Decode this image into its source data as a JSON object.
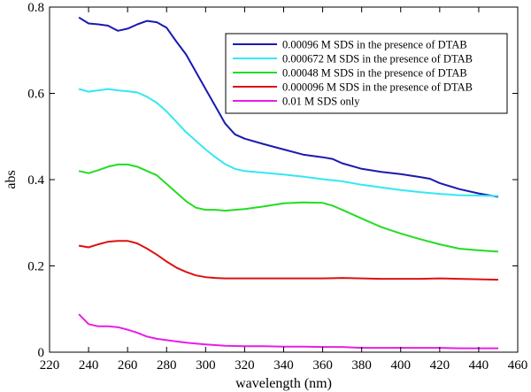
{
  "chart_data": {
    "type": "line",
    "title": "",
    "xlabel": "wavelength (nm)",
    "ylabel": "abs",
    "xlim": [
      220,
      460
    ],
    "ylim": [
      0,
      0.8
    ],
    "xticks": [
      220,
      240,
      260,
      280,
      300,
      320,
      340,
      360,
      380,
      400,
      420,
      440,
      460
    ],
    "yticks": [
      0,
      0.2,
      0.4,
      0.6,
      0.8
    ],
    "ytick_labels": [
      "0",
      "0.2",
      "0.4",
      "0.6",
      "0.8"
    ],
    "grid": false,
    "legend_position": "top-right",
    "series": [
      {
        "name": "0.00096 M SDS in the presence of DTAB",
        "color": "#1a1aaf",
        "x": [
          235,
          240,
          245,
          250,
          255,
          260,
          265,
          270,
          275,
          280,
          285,
          290,
          295,
          300,
          305,
          310,
          315,
          320,
          330,
          340,
          350,
          360,
          365,
          370,
          380,
          390,
          400,
          410,
          415,
          420,
          430,
          440,
          450
        ],
        "y": [
          0.776,
          0.762,
          0.76,
          0.757,
          0.745,
          0.75,
          0.76,
          0.768,
          0.765,
          0.752,
          0.72,
          0.69,
          0.65,
          0.61,
          0.57,
          0.53,
          0.505,
          0.495,
          0.482,
          0.47,
          0.458,
          0.452,
          0.448,
          0.438,
          0.425,
          0.418,
          0.413,
          0.406,
          0.402,
          0.392,
          0.378,
          0.368,
          0.36
        ]
      },
      {
        "name": "0.000672 M SDS in the presence of DTAB",
        "color": "#33e8f2",
        "x": [
          235,
          240,
          245,
          250,
          255,
          260,
          265,
          270,
          275,
          280,
          285,
          290,
          295,
          300,
          305,
          310,
          315,
          320,
          330,
          340,
          350,
          360,
          370,
          380,
          390,
          400,
          410,
          420,
          430,
          440,
          450
        ],
        "y": [
          0.61,
          0.604,
          0.607,
          0.61,
          0.607,
          0.605,
          0.602,
          0.592,
          0.578,
          0.558,
          0.534,
          0.51,
          0.49,
          0.47,
          0.452,
          0.436,
          0.425,
          0.42,
          0.416,
          0.412,
          0.407,
          0.401,
          0.396,
          0.388,
          0.382,
          0.376,
          0.371,
          0.367,
          0.364,
          0.363,
          0.362
        ]
      },
      {
        "name": "0.00048 M SDS in the presence of DTAB",
        "color": "#22dd22",
        "x": [
          235,
          240,
          245,
          250,
          255,
          260,
          265,
          270,
          275,
          280,
          285,
          290,
          295,
          300,
          305,
          310,
          315,
          320,
          330,
          340,
          350,
          360,
          365,
          370,
          380,
          390,
          400,
          410,
          420,
          430,
          440,
          450
        ],
        "y": [
          0.42,
          0.415,
          0.422,
          0.43,
          0.435,
          0.435,
          0.43,
          0.42,
          0.41,
          0.39,
          0.37,
          0.35,
          0.335,
          0.33,
          0.33,
          0.328,
          0.33,
          0.332,
          0.338,
          0.345,
          0.347,
          0.346,
          0.34,
          0.33,
          0.31,
          0.29,
          0.275,
          0.262,
          0.25,
          0.24,
          0.236,
          0.233
        ]
      },
      {
        "name": "0.000096 M SDS in the presence of DTAB",
        "color": "#dd1111",
        "x": [
          235,
          240,
          245,
          250,
          255,
          260,
          265,
          270,
          275,
          280,
          285,
          290,
          295,
          300,
          305,
          310,
          320,
          330,
          340,
          350,
          360,
          370,
          380,
          390,
          400,
          410,
          420,
          430,
          440,
          450
        ],
        "y": [
          0.247,
          0.243,
          0.25,
          0.256,
          0.258,
          0.258,
          0.252,
          0.24,
          0.226,
          0.21,
          0.196,
          0.186,
          0.178,
          0.174,
          0.172,
          0.171,
          0.171,
          0.171,
          0.171,
          0.171,
          0.171,
          0.172,
          0.171,
          0.17,
          0.17,
          0.17,
          0.171,
          0.17,
          0.169,
          0.168
        ]
      },
      {
        "name": "0.01 M SDS only",
        "color": "#e61fe6",
        "x": [
          235,
          240,
          245,
          250,
          255,
          260,
          265,
          270,
          275,
          280,
          290,
          300,
          310,
          320,
          330,
          340,
          350,
          360,
          370,
          380,
          390,
          400,
          410,
          420,
          430,
          440,
          450
        ],
        "y": [
          0.088,
          0.065,
          0.06,
          0.06,
          0.058,
          0.052,
          0.045,
          0.036,
          0.031,
          0.028,
          0.022,
          0.018,
          0.015,
          0.014,
          0.014,
          0.013,
          0.013,
          0.012,
          0.012,
          0.01,
          0.01,
          0.01,
          0.01,
          0.01,
          0.009,
          0.009,
          0.009
        ]
      }
    ]
  }
}
